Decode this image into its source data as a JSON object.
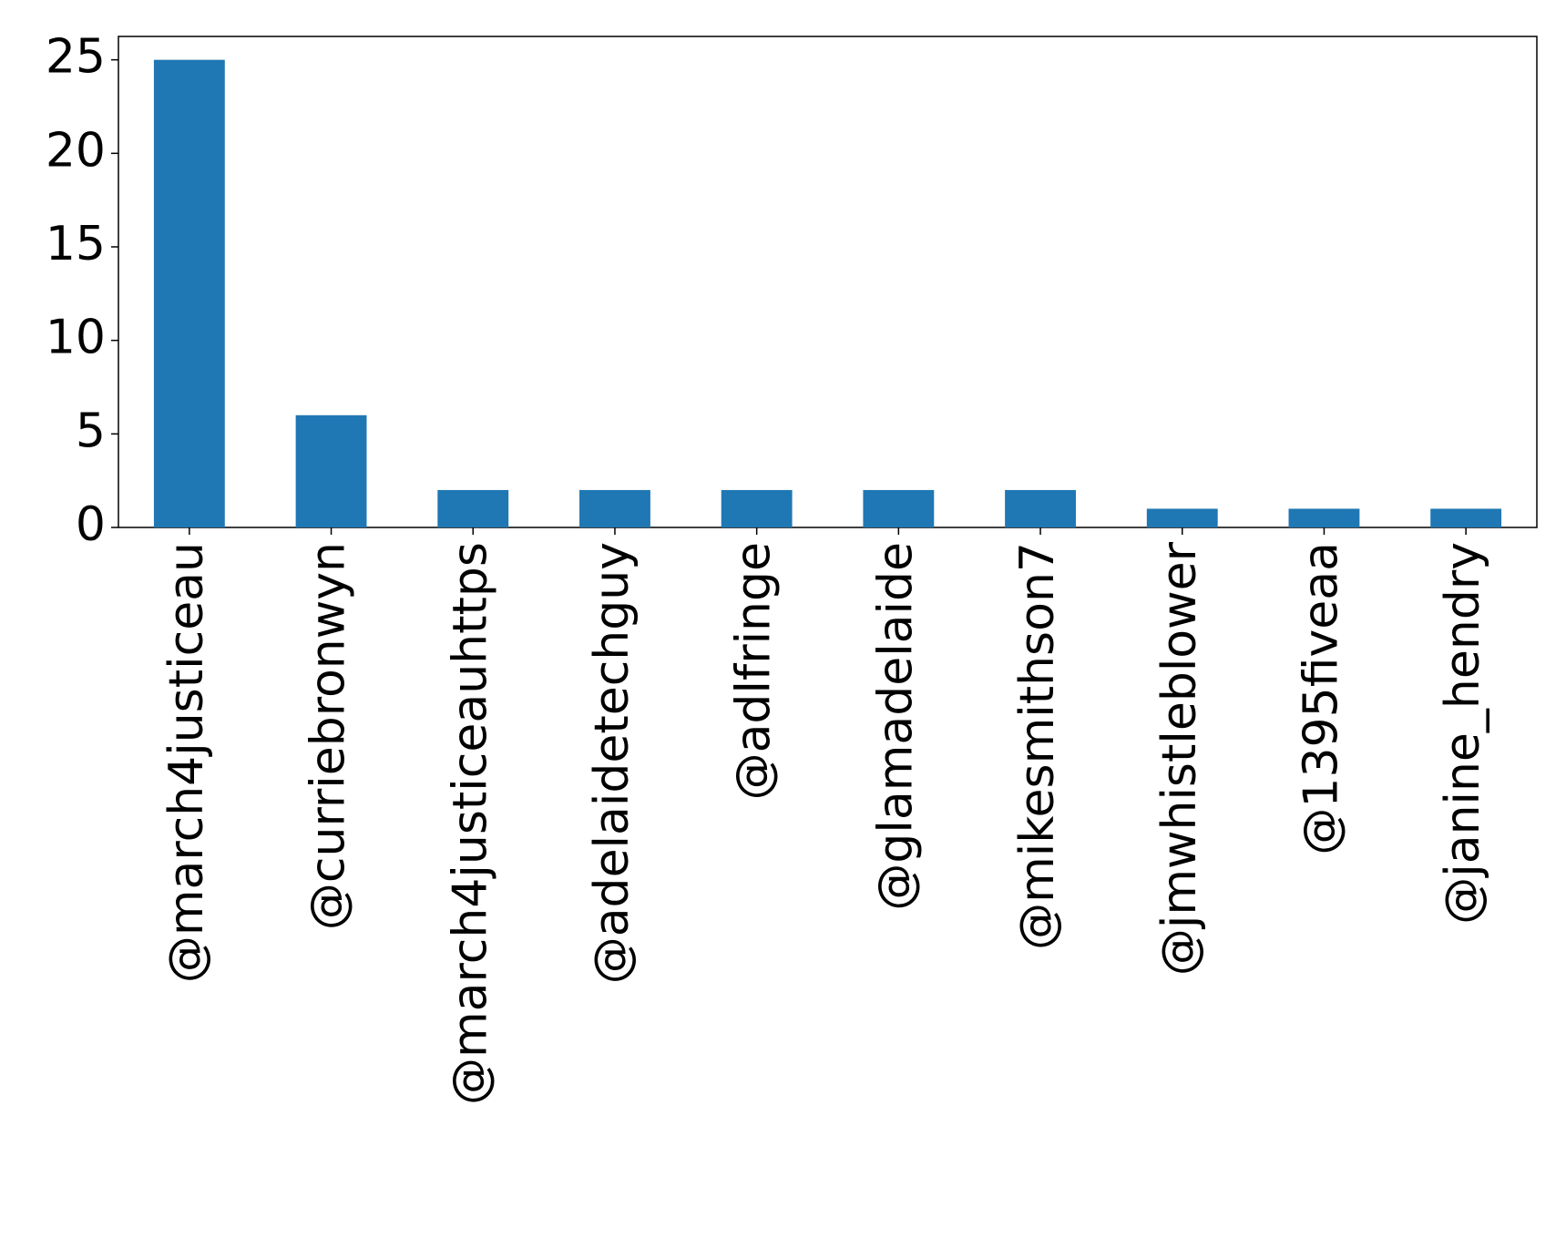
{
  "chart_data": {
    "type": "bar",
    "categories": [
      "@march4justiceau",
      "@curriebronwyn",
      "@march4justiceauhttps",
      "@adelaidetechguy",
      "@adlfringe",
      "@glamadelaide",
      "@mikesmithson7",
      "@jmwhistleblower",
      "@1395fiveaa",
      "@janine_hendry"
    ],
    "values": [
      25,
      6,
      2,
      2,
      2,
      2,
      2,
      1,
      1,
      1
    ],
    "color": "#1f77b4",
    "ylim": [
      0,
      26.25
    ],
    "yticks": [
      0,
      5,
      10,
      15,
      20,
      25
    ],
    "grid": false
  }
}
